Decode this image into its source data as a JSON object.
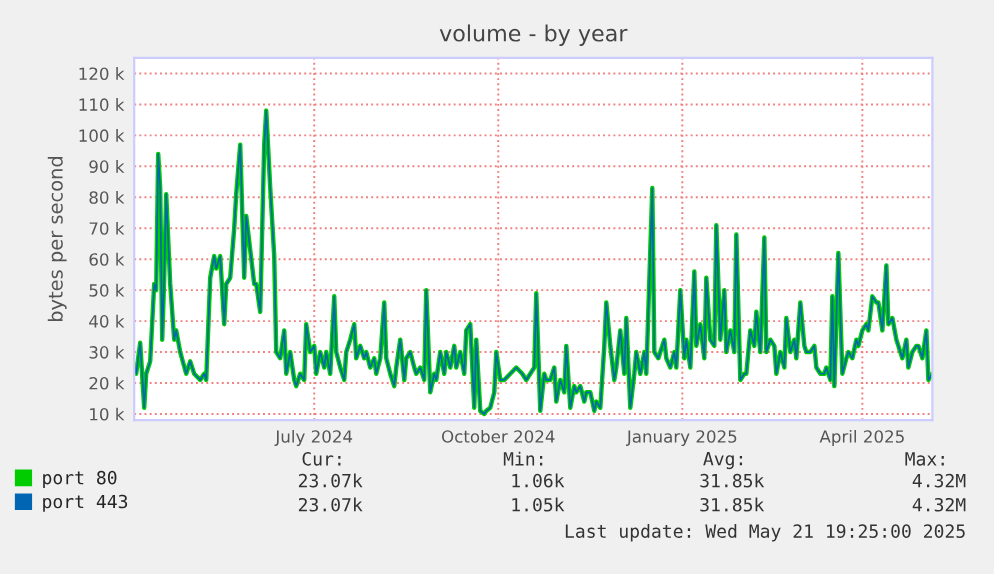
{
  "chart_data": {
    "type": "line",
    "title": "volume - by year",
    "ylabel": "bytes per second",
    "x": [
      "2024-04-17",
      "2024-04-18",
      "2024-04-20",
      "2024-04-22",
      "2024-04-23",
      "2024-04-25",
      "2024-04-27",
      "2024-04-28",
      "2024-04-29",
      "2024-04-30",
      "2024-05-01",
      "2024-05-02",
      "2024-05-03",
      "2024-05-05",
      "2024-05-07",
      "2024-05-08",
      "2024-05-10",
      "2024-05-13",
      "2024-05-15",
      "2024-05-17",
      "2024-05-20",
      "2024-05-22",
      "2024-05-23",
      "2024-05-25",
      "2024-05-27",
      "2024-05-28",
      "2024-05-30",
      "2024-06-01",
      "2024-06-02",
      "2024-06-04",
      "2024-06-06",
      "2024-06-07",
      "2024-06-09",
      "2024-06-11",
      "2024-06-12",
      "2024-06-14",
      "2024-06-16",
      "2024-06-17",
      "2024-06-19",
      "2024-06-21",
      "2024-06-22",
      "2024-06-24",
      "2024-06-26",
      "2024-06-27",
      "2024-06-29",
      "2024-07-01",
      "2024-07-02",
      "2024-07-04",
      "2024-07-06",
      "2024-07-07",
      "2024-07-09",
      "2024-07-11",
      "2024-07-12",
      "2024-07-14",
      "2024-07-16",
      "2024-07-17",
      "2024-07-19",
      "2024-07-21",
      "2024-07-22",
      "2024-07-24",
      "2024-07-26",
      "2024-07-27",
      "2024-07-29",
      "2024-07-31",
      "2024-08-01",
      "2024-08-03",
      "2024-08-05",
      "2024-08-06",
      "2024-08-08",
      "2024-08-10",
      "2024-08-11",
      "2024-08-13",
      "2024-08-15",
      "2024-08-16",
      "2024-08-18",
      "2024-08-20",
      "2024-08-21",
      "2024-08-23",
      "2024-08-25",
      "2024-08-26",
      "2024-08-28",
      "2024-08-30",
      "2024-08-31",
      "2024-09-02",
      "2024-09-04",
      "2024-09-05",
      "2024-09-07",
      "2024-09-09",
      "2024-09-10",
      "2024-09-12",
      "2024-09-14",
      "2024-09-15",
      "2024-09-17",
      "2024-09-19",
      "2024-09-20",
      "2024-09-22",
      "2024-09-24",
      "2024-09-25",
      "2024-09-27",
      "2024-09-29",
      "2024-09-30",
      "2024-10-02",
      "2024-10-04",
      "2024-10-05",
      "2024-10-07",
      "2024-10-09",
      "2024-10-10",
      "2024-10-12",
      "2024-10-14",
      "2024-10-15",
      "2024-10-17",
      "2024-10-19",
      "2024-10-22",
      "2024-10-25",
      "2024-10-28",
      "2024-10-30",
      "2024-11-01",
      "2024-11-03",
      "2024-11-04",
      "2024-11-06",
      "2024-11-08",
      "2024-11-09",
      "2024-11-11",
      "2024-11-13",
      "2024-11-14",
      "2024-11-16",
      "2024-11-18",
      "2024-11-19",
      "2024-11-21",
      "2024-11-23",
      "2024-11-24",
      "2024-11-26",
      "2024-11-28",
      "2024-11-29",
      "2024-12-01",
      "2024-12-03",
      "2024-12-04",
      "2024-12-06",
      "2024-12-08",
      "2024-12-09",
      "2024-12-11",
      "2024-12-13",
      "2024-12-14",
      "2024-12-16",
      "2024-12-18",
      "2024-12-19",
      "2024-12-21",
      "2024-12-23",
      "2024-12-24",
      "2024-12-26",
      "2024-12-28",
      "2024-12-29",
      "2025-01-01",
      "2025-01-02",
      "2025-01-04",
      "2025-01-07",
      "2025-01-08",
      "2025-01-10",
      "2025-01-12",
      "2025-01-13",
      "2025-01-15",
      "2025-01-17",
      "2025-01-18",
      "2025-01-20",
      "2025-01-22",
      "2025-01-23",
      "2025-01-25",
      "2025-01-27",
      "2025-01-28",
      "2025-01-30",
      "2025-02-01",
      "2025-02-02",
      "2025-02-04",
      "2025-02-06",
      "2025-02-07",
      "2025-02-09",
      "2025-02-11",
      "2025-02-12",
      "2025-02-14",
      "2025-02-16",
      "2025-02-17",
      "2025-02-19",
      "2025-02-21",
      "2025-02-22",
      "2025-02-24",
      "2025-02-26",
      "2025-02-27",
      "2025-03-01",
      "2025-03-03",
      "2025-03-04",
      "2025-03-06",
      "2025-03-08",
      "2025-03-09",
      "2025-03-11",
      "2025-03-13",
      "2025-03-14",
      "2025-03-16",
      "2025-03-18",
      "2025-03-19",
      "2025-03-21",
      "2025-03-23",
      "2025-03-24",
      "2025-03-26",
      "2025-03-28",
      "2025-03-29",
      "2025-03-31",
      "2025-04-01",
      "2025-04-02",
      "2025-04-04",
      "2025-04-06",
      "2025-04-08",
      "2025-04-09",
      "2025-04-11",
      "2025-04-13",
      "2025-04-14",
      "2025-04-16",
      "2025-04-18",
      "2025-04-19",
      "2025-04-21",
      "2025-04-23",
      "2025-04-24",
      "2025-04-26",
      "2025-04-28",
      "2025-04-29",
      "2025-05-01",
      "2025-05-03",
      "2025-05-04",
      "2025-05-06",
      "2025-05-08",
      "2025-05-09",
      "2025-05-11",
      "2025-05-13",
      "2025-05-14",
      "2025-05-16",
      "2025-05-18",
      "2025-05-19",
      "2025-05-21"
    ],
    "series": [
      {
        "name": "port 80",
        "color": "#00cc00",
        "values": [
          26000,
          23000,
          33000,
          12000,
          23000,
          27000,
          52000,
          50000,
          94000,
          83000,
          34000,
          54000,
          81000,
          52000,
          34000,
          37000,
          30000,
          23000,
          27000,
          23000,
          21000,
          23000,
          21000,
          54000,
          61000,
          57000,
          61000,
          39000,
          52000,
          54000,
          70000,
          81000,
          97000,
          54000,
          74000,
          63000,
          52000,
          52000,
          43000,
          97000,
          108000,
          83000,
          61000,
          30000,
          28000,
          37000,
          23000,
          30000,
          21000,
          19000,
          23000,
          21000,
          39000,
          30000,
          32000,
          23000,
          30000,
          25000,
          30000,
          23000,
          48000,
          30000,
          25000,
          21000,
          30000,
          34000,
          39000,
          28000,
          32000,
          28000,
          30000,
          25000,
          28000,
          23000,
          28000,
          46000,
          28000,
          23000,
          19000,
          25000,
          34000,
          21000,
          28000,
          30000,
          25000,
          23000,
          25000,
          21000,
          50000,
          17000,
          23000,
          21000,
          30000,
          23000,
          30000,
          25000,
          32000,
          25000,
          30000,
          23000,
          37000,
          39000,
          12000,
          34000,
          11000,
          10000,
          11000,
          12000,
          17000,
          30000,
          21000,
          21000,
          23000,
          25000,
          23000,
          21000,
          23000,
          25000,
          49000,
          11000,
          23000,
          21000,
          21000,
          25000,
          14000,
          21000,
          17000,
          32000,
          12000,
          19000,
          17000,
          19000,
          14000,
          17000,
          17000,
          11000,
          14000,
          12000,
          32000,
          46000,
          32000,
          21000,
          25000,
          37000,
          23000,
          41000,
          12000,
          23000,
          30000,
          23000,
          30000,
          23000,
          83000,
          30000,
          28000,
          34000,
          28000,
          25000,
          30000,
          25000,
          50000,
          28000,
          34000,
          25000,
          56000,
          32000,
          39000,
          28000,
          54000,
          34000,
          32000,
          71000,
          34000,
          50000,
          30000,
          37000,
          30000,
          68000,
          21000,
          23000,
          23000,
          37000,
          32000,
          43000,
          30000,
          67000,
          30000,
          34000,
          32000,
          23000,
          30000,
          25000,
          41000,
          30000,
          34000,
          28000,
          46000,
          32000,
          30000,
          30000,
          32000,
          25000,
          23000,
          23000,
          25000,
          21000,
          48000,
          19000,
          62000,
          23000,
          28000,
          30000,
          28000,
          34000,
          32000,
          37000,
          39000,
          37000,
          48000,
          46000,
          46000,
          37000,
          58000,
          39000,
          41000,
          34000,
          32000,
          28000,
          34000,
          25000,
          30000,
          32000,
          32000,
          28000,
          37000,
          21000,
          23000
        ]
      },
      {
        "name": "port 443",
        "color": "#0066b3",
        "values": [
          26000,
          23000,
          33000,
          12000,
          23000,
          27000,
          52000,
          50000,
          94000,
          83000,
          34000,
          54000,
          81000,
          52000,
          34000,
          37000,
          30000,
          23000,
          27000,
          23000,
          21000,
          23000,
          21000,
          54000,
          61000,
          57000,
          61000,
          39000,
          52000,
          54000,
          70000,
          81000,
          97000,
          54000,
          74000,
          63000,
          52000,
          52000,
          43000,
          97000,
          108000,
          83000,
          61000,
          30000,
          28000,
          37000,
          23000,
          30000,
          21000,
          19000,
          23000,
          21000,
          39000,
          30000,
          32000,
          23000,
          30000,
          25000,
          30000,
          23000,
          48000,
          30000,
          25000,
          21000,
          30000,
          34000,
          39000,
          28000,
          32000,
          28000,
          30000,
          25000,
          28000,
          23000,
          28000,
          46000,
          28000,
          23000,
          19000,
          25000,
          34000,
          21000,
          28000,
          30000,
          25000,
          23000,
          25000,
          21000,
          50000,
          17000,
          23000,
          21000,
          30000,
          23000,
          30000,
          25000,
          32000,
          25000,
          30000,
          23000,
          37000,
          39000,
          12000,
          34000,
          11000,
          10000,
          11000,
          12000,
          17000,
          30000,
          21000,
          21000,
          23000,
          25000,
          23000,
          21000,
          23000,
          25000,
          49000,
          11000,
          23000,
          21000,
          21000,
          25000,
          14000,
          21000,
          17000,
          32000,
          12000,
          19000,
          17000,
          19000,
          14000,
          17000,
          17000,
          11000,
          14000,
          12000,
          32000,
          46000,
          32000,
          21000,
          25000,
          37000,
          23000,
          41000,
          12000,
          23000,
          30000,
          23000,
          30000,
          23000,
          83000,
          30000,
          28000,
          34000,
          28000,
          25000,
          30000,
          25000,
          50000,
          28000,
          34000,
          25000,
          56000,
          32000,
          39000,
          28000,
          54000,
          34000,
          32000,
          71000,
          34000,
          50000,
          30000,
          37000,
          30000,
          68000,
          21000,
          23000,
          23000,
          37000,
          32000,
          43000,
          30000,
          67000,
          30000,
          34000,
          32000,
          23000,
          30000,
          25000,
          41000,
          30000,
          34000,
          28000,
          46000,
          32000,
          30000,
          30000,
          32000,
          25000,
          23000,
          23000,
          25000,
          21000,
          48000,
          19000,
          62000,
          23000,
          28000,
          30000,
          28000,
          34000,
          32000,
          37000,
          39000,
          37000,
          48000,
          46000,
          46000,
          37000,
          58000,
          39000,
          41000,
          34000,
          32000,
          28000,
          34000,
          25000,
          30000,
          32000,
          32000,
          28000,
          37000,
          21000,
          23000
        ]
      }
    ],
    "xlim": [
      "2024-04-17",
      "2025-05-21"
    ],
    "xticks": [
      {
        "value": "2024-07-16",
        "label": "July 2024"
      },
      {
        "value": "2024-10-16",
        "label": "October 2024"
      },
      {
        "value": "2025-01-16",
        "label": "January 2025"
      },
      {
        "value": "2025-04-16",
        "label": "April 2025"
      }
    ],
    "ylim": [
      8000,
      125000
    ],
    "yticks": [
      {
        "value": 10000,
        "label": "10 k"
      },
      {
        "value": 20000,
        "label": "20 k"
      },
      {
        "value": 30000,
        "label": "30 k"
      },
      {
        "value": 40000,
        "label": "40 k"
      },
      {
        "value": 50000,
        "label": "50 k"
      },
      {
        "value": 60000,
        "label": "60 k"
      },
      {
        "value": 70000,
        "label": "70 k"
      },
      {
        "value": 80000,
        "label": "80 k"
      },
      {
        "value": 90000,
        "label": "90 k"
      },
      {
        "value": 100000,
        "label": "100 k"
      },
      {
        "value": 110000,
        "label": "110 k"
      },
      {
        "value": 120000,
        "label": "120 k"
      }
    ],
    "grid": true,
    "legend": "bottom left",
    "line_style": "solid",
    "marker": "none",
    "annotations": [
      "Cur:",
      "Min:",
      "Avg:",
      "Max:",
      "23.07k",
      "1.06k",
      "31.85k",
      "4.32M",
      "23.07k",
      "1.05k",
      "31.85k",
      "4.32M",
      "Last update: Wed May 21 19:25:00 2025"
    ]
  }
}
